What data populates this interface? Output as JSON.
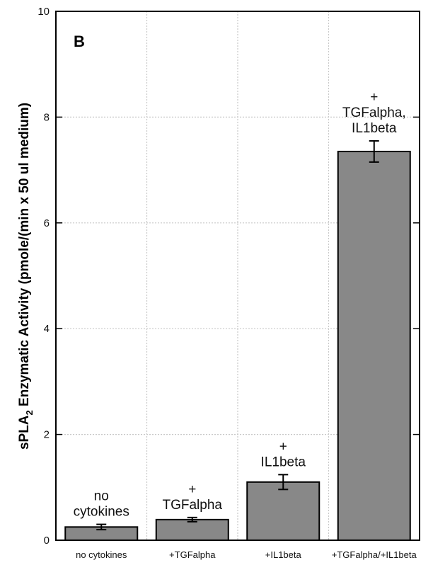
{
  "chart_data": {
    "type": "bar",
    "panel_label": "B",
    "ylabel": {
      "main": "sPLA",
      "subscript": "2",
      "rest": " Enzymatic Activity (pmole/(min  x 50 ul medium)"
    },
    "ylim": [
      0,
      10
    ],
    "yticks": [
      "0",
      "2",
      "4",
      "6",
      "8",
      "10"
    ],
    "grid": true,
    "categories": [
      "no cytokines",
      "+TGFalpha",
      "+IL1beta",
      "+TGFalpha/+IL1beta"
    ],
    "values": [
      0.25,
      0.39,
      1.1,
      7.35
    ],
    "errors": [
      0.05,
      0.04,
      0.14,
      0.2
    ],
    "annotations": [
      [
        "no",
        "cytokines"
      ],
      [
        "+",
        "TGFalpha"
      ],
      [
        "+",
        "IL1beta"
      ],
      [
        "+",
        "TGFalpha,",
        "IL1beta"
      ]
    ],
    "bar_color": "#888888",
    "grid_color": "#c8c8c8"
  }
}
